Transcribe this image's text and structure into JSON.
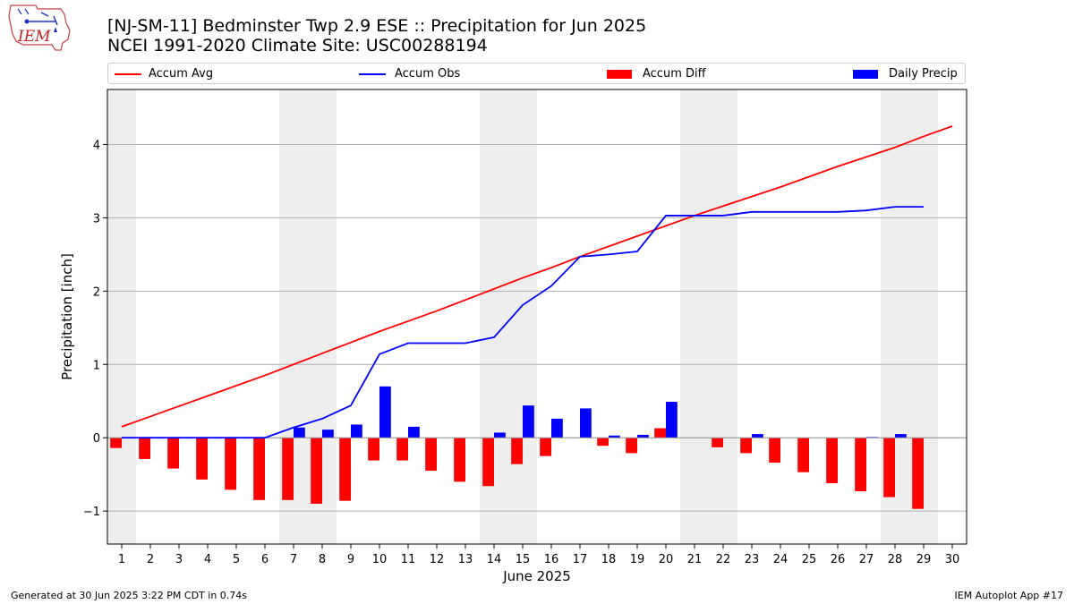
{
  "title": "[NJ-SM-11] Bedminster Twp 2.9 ESE :: Precipitation for Jun 2025",
  "subtitle": "NCEI 1991-2020 Climate Site: USC00288194",
  "logo_text": "IEM",
  "footer_left": "Generated at 30 Jun 2025 3:22 PM CDT in 0.74s",
  "footer_right": "IEM Autoplot App #17",
  "legend": [
    {
      "label": "Accum Avg",
      "color": "#ff0000",
      "kind": "line"
    },
    {
      "label": "Accum Obs",
      "color": "#0000ff",
      "kind": "line"
    },
    {
      "label": "Accum Diff",
      "color": "#ff0000",
      "kind": "bar"
    },
    {
      "label": "Daily Precip",
      "color": "#0000ff",
      "kind": "bar"
    }
  ],
  "chart_data": {
    "type": "bar",
    "title": "[NJ-SM-11] Bedminster Twp 2.9 ESE :: Precipitation for Jun 2025",
    "subtitle": "NCEI 1991-2020 Climate Site: USC00288194",
    "xlabel": "June 2025",
    "ylabel": "Precipitation [inch]",
    "ylim": [
      -1.45,
      4.75
    ],
    "yticks": [
      -1,
      0,
      1,
      2,
      3,
      4
    ],
    "ytick_labels": [
      "−1",
      "0",
      "1",
      "2",
      "3",
      "4"
    ],
    "categories": [
      "1",
      "2",
      "3",
      "4",
      "5",
      "6",
      "7",
      "8",
      "9",
      "10",
      "11",
      "12",
      "13",
      "14",
      "15",
      "16",
      "17",
      "18",
      "19",
      "20",
      "21",
      "22",
      "23",
      "24",
      "25",
      "26",
      "27",
      "28",
      "29",
      "30"
    ],
    "grid": "horizontal",
    "weekend_shading": [
      [
        0.5,
        1.5
      ],
      [
        6.5,
        8.5
      ],
      [
        13.5,
        15.5
      ],
      [
        20.5,
        22.5
      ],
      [
        27.5,
        29.5
      ]
    ],
    "series": [
      {
        "name": "Accum Avg",
        "type": "line",
        "color": "#ff0000",
        "x": [
          1,
          2,
          3,
          4,
          5,
          6,
          7,
          8,
          9,
          10,
          11,
          12,
          13,
          14,
          15,
          16,
          17,
          18,
          19,
          20,
          21,
          22,
          23,
          24,
          25,
          26,
          27,
          28,
          29,
          30
        ],
        "values": [
          0.15,
          0.29,
          0.43,
          0.57,
          0.71,
          0.85,
          1.0,
          1.15,
          1.3,
          1.45,
          1.59,
          1.73,
          1.88,
          2.03,
          2.18,
          2.32,
          2.47,
          2.61,
          2.75,
          2.89,
          3.03,
          3.16,
          3.29,
          3.42,
          3.56,
          3.7,
          3.83,
          3.96,
          4.11,
          4.25
        ]
      },
      {
        "name": "Accum Obs",
        "type": "line",
        "color": "#0000ff",
        "x": [
          1,
          2,
          3,
          4,
          5,
          6,
          7,
          8,
          9,
          10,
          11,
          12,
          13,
          14,
          15,
          16,
          17,
          18,
          19,
          20,
          21,
          22,
          23,
          24,
          25,
          26,
          27,
          28,
          29
        ],
        "values": [
          0.0,
          0.0,
          0.0,
          0.0,
          0.0,
          0.0,
          0.14,
          0.26,
          0.44,
          1.14,
          1.29,
          1.29,
          1.29,
          1.37,
          1.81,
          2.07,
          2.47,
          2.5,
          2.54,
          3.03,
          3.03,
          3.03,
          3.08,
          3.08,
          3.08,
          3.08,
          3.1,
          3.15,
          3.15
        ]
      },
      {
        "name": "Accum Diff",
        "type": "bar",
        "color": "#ff0000",
        "x": [
          1,
          2,
          3,
          4,
          5,
          6,
          7,
          8,
          9,
          10,
          11,
          12,
          13,
          14,
          15,
          16,
          17,
          18,
          19,
          20,
          21,
          22,
          23,
          24,
          25,
          26,
          27,
          28,
          29
        ],
        "values": [
          -0.14,
          -0.29,
          -0.42,
          -0.57,
          -0.71,
          -0.85,
          -0.85,
          -0.9,
          -0.86,
          -0.31,
          -0.31,
          -0.45,
          -0.6,
          -0.66,
          -0.36,
          -0.25,
          0.0,
          -0.11,
          -0.21,
          0.13,
          0.0,
          -0.13,
          -0.21,
          -0.34,
          -0.47,
          -0.62,
          -0.73,
          -0.81,
          -0.97
        ]
      },
      {
        "name": "Daily Precip",
        "type": "bar",
        "color": "#0000ff",
        "x": [
          1,
          2,
          3,
          4,
          5,
          6,
          7,
          8,
          9,
          10,
          11,
          12,
          13,
          14,
          15,
          16,
          17,
          18,
          19,
          20,
          21,
          22,
          23,
          24,
          25,
          26,
          27,
          28,
          29
        ],
        "values": [
          0.0,
          0.0,
          0.0,
          0.0,
          0.0,
          0.0,
          0.14,
          0.11,
          0.18,
          0.7,
          0.15,
          0.0,
          0.0,
          0.07,
          0.44,
          0.26,
          0.4,
          0.03,
          0.04,
          0.49,
          0.0,
          0.0,
          0.05,
          0.0,
          0.0,
          0.0,
          0.01,
          0.05,
          0.0
        ]
      }
    ]
  }
}
